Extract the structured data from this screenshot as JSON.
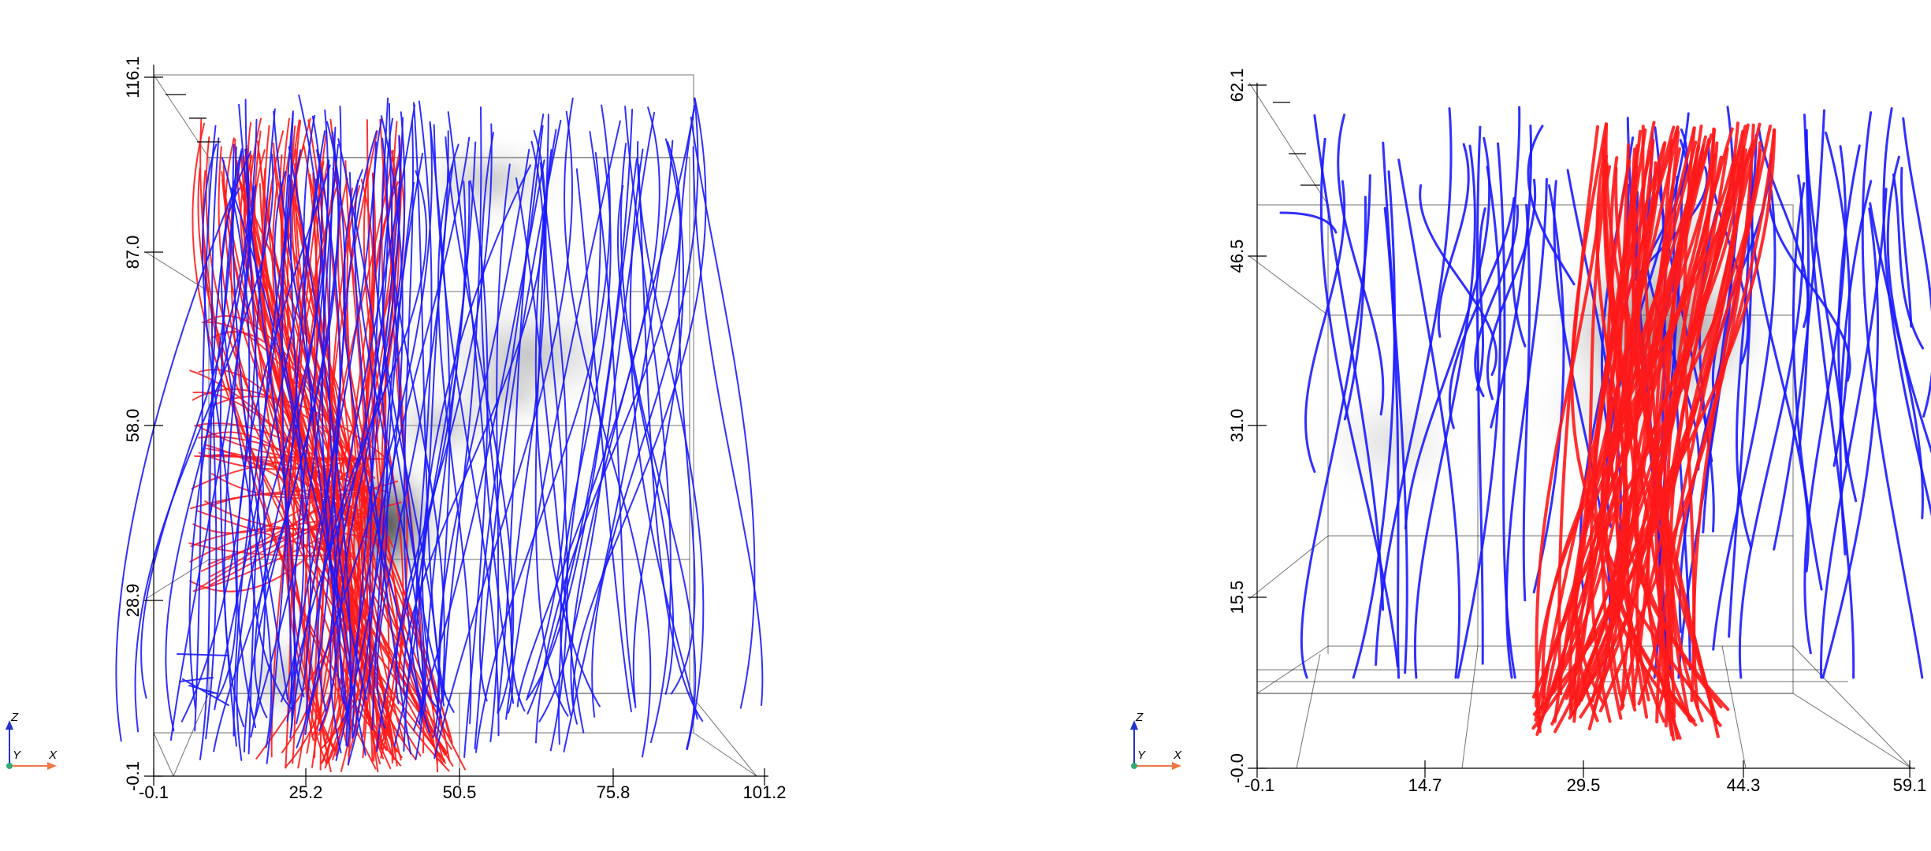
{
  "colors": {
    "red_streamlines": "#ff1a1a",
    "blue_streamlines": "#1a1aff",
    "density_cloud": "#3a3a3a",
    "axis": "#000000"
  },
  "left_view": {
    "z_ticks": [
      "-0.1",
      "28.9",
      "58.0",
      "87.0",
      "116.1"
    ],
    "x_ticks": [
      "-0.1",
      "25.2",
      "50.5",
      "75.8",
      "101.2"
    ],
    "orientation": {
      "z": "Z",
      "y": "Y",
      "x": "X"
    }
  },
  "right_view": {
    "z_ticks": [
      "-0.0",
      "15.5",
      "31.0",
      "46.5",
      "62.1"
    ],
    "x_ticks": [
      "-0.1",
      "14.7",
      "29.5",
      "44.3",
      "59.1"
    ],
    "orientation": {
      "z": "Z",
      "y": "Y",
      "x": "X"
    }
  }
}
